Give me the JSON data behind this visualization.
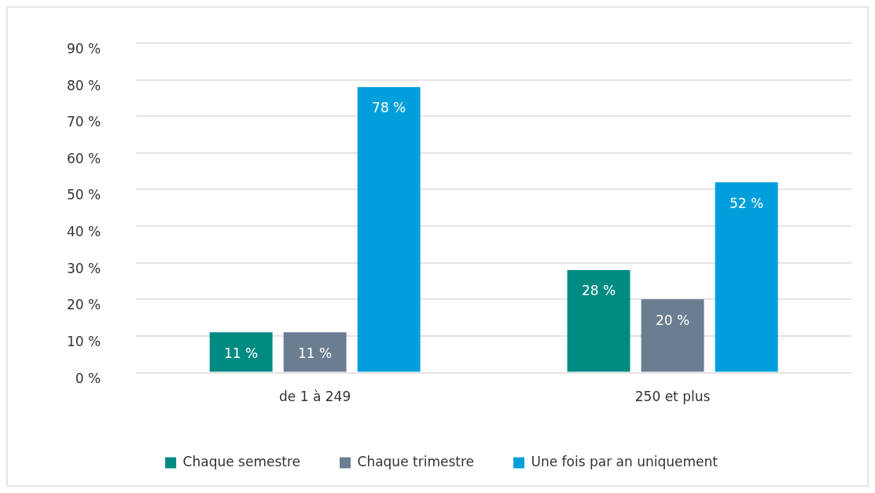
{
  "chart_data": {
    "type": "bar",
    "categories": [
      "de 1 à 249",
      "250 et plus"
    ],
    "series": [
      {
        "name": "Chaque semestre",
        "color": "#008b82",
        "values": [
          11,
          28
        ],
        "value_labels": [
          "11 %",
          "28 %"
        ]
      },
      {
        "name": "Chaque trimestre",
        "color": "#6a7d91",
        "values": [
          11,
          20
        ],
        "value_labels": [
          "11 %",
          "20 %"
        ]
      },
      {
        "name": "Une fois par an uniquement",
        "color": "#009fdb",
        "values": [
          78,
          52
        ],
        "value_labels": [
          "78 %",
          "52 %"
        ]
      }
    ],
    "ylim": [
      0,
      90
    ],
    "yticks": [
      {
        "value": 0,
        "label": "0 %"
      },
      {
        "value": 10,
        "label": "10 %"
      },
      {
        "value": 20,
        "label": "20 %"
      },
      {
        "value": 30,
        "label": "30 %"
      },
      {
        "value": 40,
        "label": "40 %"
      },
      {
        "value": 50,
        "label": "50 %"
      },
      {
        "value": 60,
        "label": "60 %"
      },
      {
        "value": 70,
        "label": "70 %"
      },
      {
        "value": 80,
        "label": "80 %"
      },
      {
        "value": 90,
        "label": "90 %"
      }
    ],
    "grid": "y",
    "legend": "bottom"
  }
}
